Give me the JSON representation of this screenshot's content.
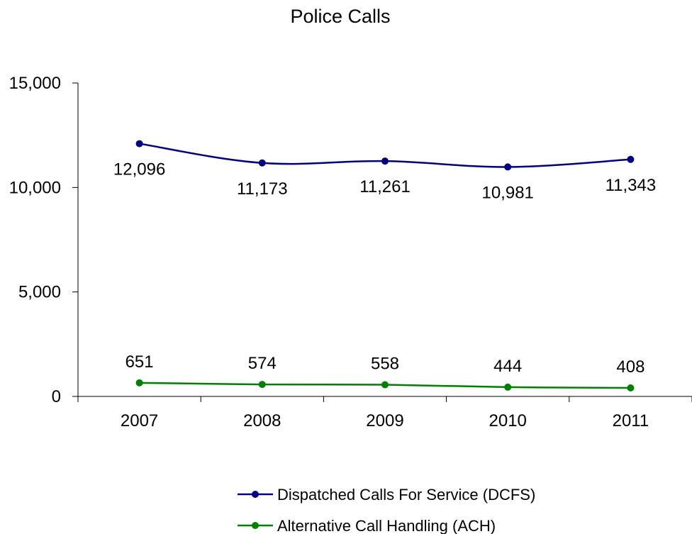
{
  "chart_data": {
    "type": "line",
    "title": "Police Calls",
    "xlabel": "",
    "ylabel": "",
    "categories": [
      "2007",
      "2008",
      "2009",
      "2010",
      "2011"
    ],
    "ylim": [
      0,
      15000
    ],
    "yticks": [
      0,
      5000,
      10000,
      15000
    ],
    "ytick_labels": [
      "0",
      "5,000",
      "10,000",
      "15,000"
    ],
    "grid": false,
    "legend_position": "bottom",
    "series": [
      {
        "name": "Dispatched Calls For Service (DCFS)",
        "color": "#000080",
        "values": [
          12096,
          11173,
          11261,
          10981,
          11343
        ],
        "labels": [
          "12,096",
          "11,173",
          "11,261",
          "10,981",
          "11,343"
        ],
        "label_position": "below"
      },
      {
        "name": "Alternative Call Handling (ACH)",
        "color": "#008000",
        "values": [
          651,
          574,
          558,
          444,
          408
        ],
        "labels": [
          "651",
          "574",
          "558",
          "444",
          "408"
        ],
        "label_position": "above"
      }
    ]
  }
}
